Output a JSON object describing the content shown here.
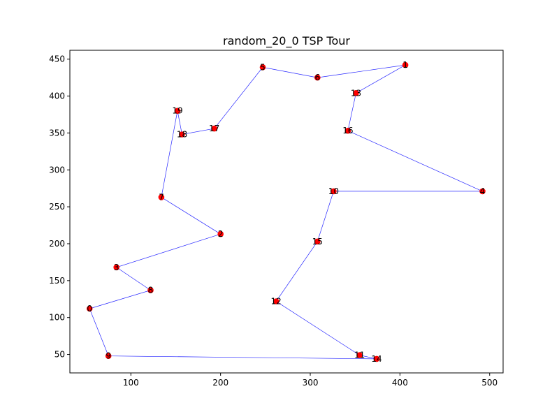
{
  "chart_data": {
    "type": "scatter",
    "title": "random_20_0 TSP Tour",
    "xlabel": "",
    "ylabel": "",
    "xlim": [
      32,
      515
    ],
    "ylim": [
      25,
      462
    ],
    "x_ticks": [
      100,
      200,
      300,
      400,
      500
    ],
    "y_ticks": [
      50,
      100,
      150,
      200,
      250,
      300,
      350,
      400,
      450
    ],
    "grid": false,
    "point_color": "#ff0000",
    "line_color": "#0000ff",
    "points": [
      {
        "label": "0",
        "x": 54,
        "y": 112
      },
      {
        "label": "1",
        "x": 406,
        "y": 442
      },
      {
        "label": "2",
        "x": 200,
        "y": 213
      },
      {
        "label": "3",
        "x": 84,
        "y": 168
      },
      {
        "label": "4",
        "x": 492,
        "y": 271
      },
      {
        "label": "5",
        "x": 247,
        "y": 439
      },
      {
        "label": "6",
        "x": 308,
        "y": 425
      },
      {
        "label": "7",
        "x": 134,
        "y": 263
      },
      {
        "label": "8",
        "x": 122,
        "y": 137
      },
      {
        "label": "9",
        "x": 75,
        "y": 48
      },
      {
        "label": "10",
        "x": 326,
        "y": 271
      },
      {
        "label": "11",
        "x": 355,
        "y": 49
      },
      {
        "label": "12",
        "x": 262,
        "y": 122
      },
      {
        "label": "13",
        "x": 351,
        "y": 404
      },
      {
        "label": "14",
        "x": 374,
        "y": 44
      },
      {
        "label": "15",
        "x": 308,
        "y": 203
      },
      {
        "label": "16",
        "x": 342,
        "y": 353
      },
      {
        "label": "17",
        "x": 193,
        "y": 356
      },
      {
        "label": "18",
        "x": 157,
        "y": 348
      },
      {
        "label": "19",
        "x": 152,
        "y": 380
      }
    ],
    "tour": [
      "0",
      "9",
      "14",
      "11",
      "12",
      "15",
      "10",
      "4",
      "16",
      "13",
      "1",
      "6",
      "5",
      "17",
      "18",
      "19",
      "7",
      "2",
      "3",
      "8",
      "0"
    ]
  }
}
